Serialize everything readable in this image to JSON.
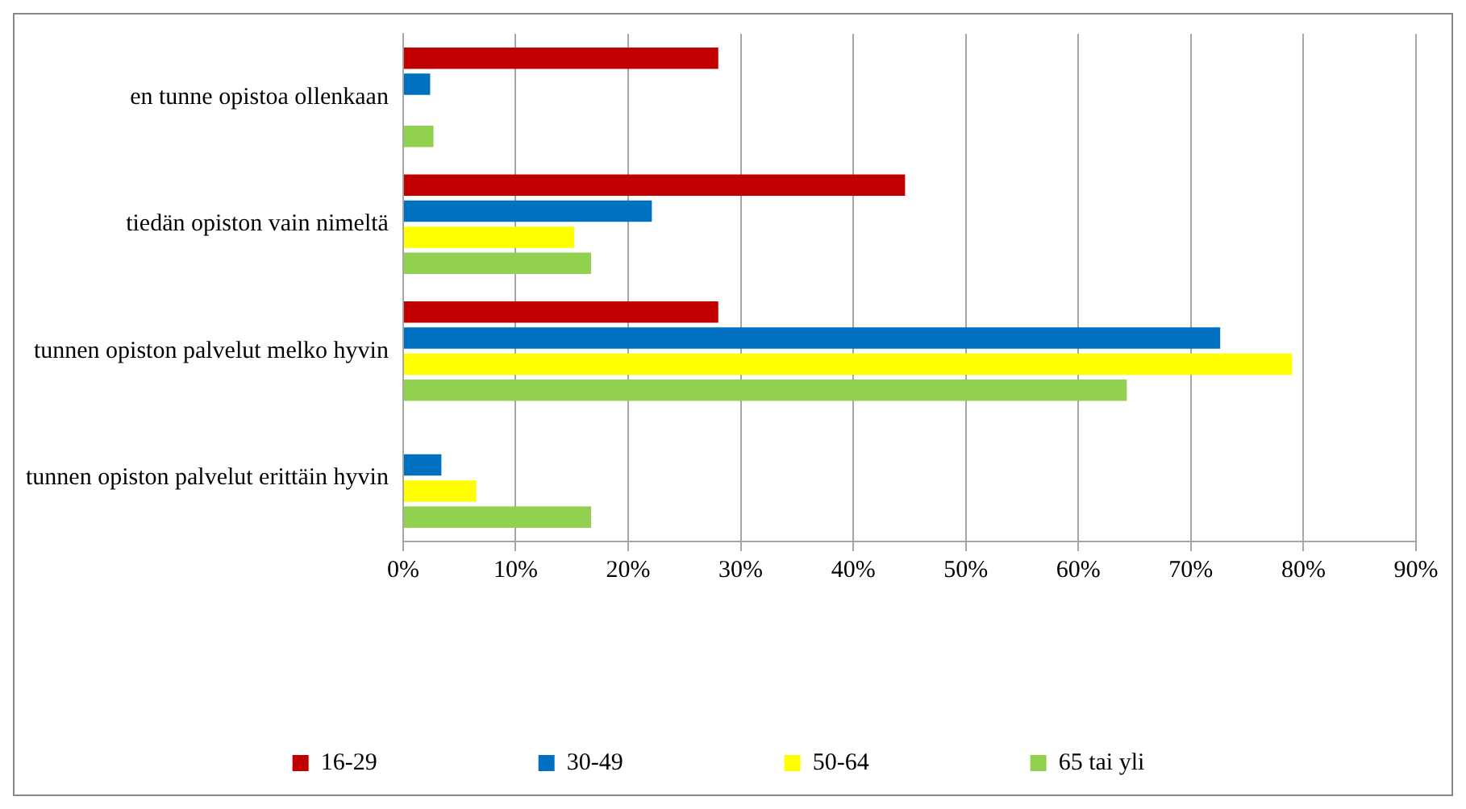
{
  "chart_data": {
    "type": "bar",
    "orientation": "horizontal",
    "categories": [
      "en tunne opistoa ollenkaan",
      "tiedän opiston vain nimeltä",
      "tunnen opiston palvelut melko hyvin",
      "tunnen opiston palvelut erittäin hyvin"
    ],
    "series": [
      {
        "name": "16-29",
        "color": "#c00000",
        "values": [
          28.0,
          44.6,
          28.0,
          0
        ]
      },
      {
        "name": "30-49",
        "color": "#0070c0",
        "values": [
          2.4,
          22.1,
          72.6,
          3.4
        ]
      },
      {
        "name": "50-64",
        "color": "#ffff00",
        "values": [
          0,
          15.2,
          79.0,
          6.5
        ]
      },
      {
        "name": "65 tai yli",
        "color": "#92d050",
        "values": [
          2.7,
          16.7,
          64.3,
          16.7
        ]
      }
    ],
    "xlim": [
      0,
      90
    ],
    "xticks": [
      {
        "value": 0,
        "label": "0%"
      },
      {
        "value": 10,
        "label": "10%"
      },
      {
        "value": 20,
        "label": "20%"
      },
      {
        "value": 30,
        "label": "30%"
      },
      {
        "value": 40,
        "label": "40%"
      },
      {
        "value": 50,
        "label": "50%"
      },
      {
        "value": 60,
        "label": "60%"
      },
      {
        "value": 70,
        "label": "70%"
      },
      {
        "value": 80,
        "label": "80%"
      },
      {
        "value": 90,
        "label": "90%"
      }
    ],
    "grid": "x",
    "legend": "bottom"
  }
}
